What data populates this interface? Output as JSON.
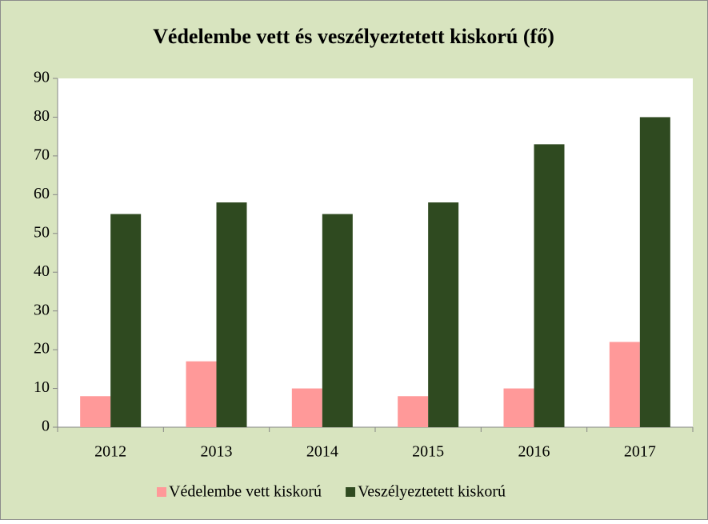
{
  "chart_data": {
    "type": "bar",
    "title": "Védelembe vett és veszélyeztetett kiskorú (fő)",
    "categories": [
      "2012",
      "2013",
      "2014",
      "2015",
      "2016",
      "2017"
    ],
    "series": [
      {
        "name": "Védelembe vett kiskorú",
        "color": "#ff9999",
        "values": [
          8,
          17,
          10,
          8,
          10,
          22
        ]
      },
      {
        "name": "Veszélyeztetett kiskorú",
        "color": "#2f4a20",
        "values": [
          55,
          58,
          55,
          58,
          73,
          80
        ]
      }
    ],
    "ylim": [
      0,
      90
    ],
    "yticks": [
      0,
      10,
      20,
      30,
      40,
      50,
      60,
      70,
      80,
      90
    ],
    "grid": false,
    "legend": "bottom"
  }
}
